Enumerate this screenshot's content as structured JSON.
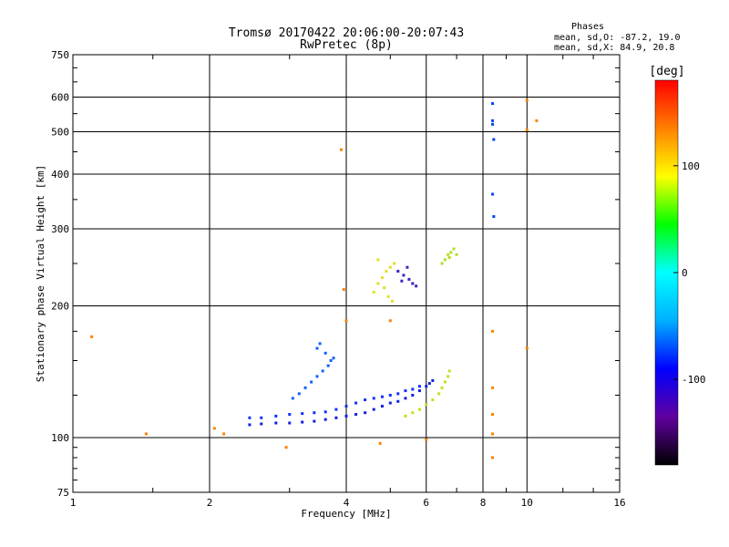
{
  "chart_data": {
    "type": "scatter",
    "title": "Tromsø 20170422 20:06:00-20:07:43",
    "subtitle": "RwPretec (8p)",
    "xlabel": "Frequency [MHz]",
    "ylabel": "Stationary phase Virtual Height [km]",
    "x_scale": "log",
    "y_scale": "log",
    "xlim": [
      1,
      16
    ],
    "ylim": [
      75,
      750
    ],
    "x_ticks": [
      "1",
      "2",
      "4",
      "6",
      "8",
      "10",
      "16"
    ],
    "y_ticks": [
      "75",
      "100",
      "200",
      "300",
      "400",
      "500",
      "600",
      "750"
    ],
    "grid": true,
    "phase_info": {
      "header": "Phases",
      "line_o": "mean, sd,O: -87.2, 19.0",
      "line_x": "mean, sd,X:  84.9, 20.8"
    },
    "colorbar": {
      "label": "[deg]",
      "ticks": [
        "100",
        "0",
        "-100"
      ],
      "range": [
        -180,
        180
      ],
      "colors": [
        "#000000",
        "#6000a0",
        "#0000ff",
        "#00b0ff",
        "#00ffff",
        "#00ff00",
        "#ffff00",
        "#ff8000",
        "#ff0000"
      ]
    },
    "series": [
      {
        "points": [
          [
            2.45,
            107
          ],
          [
            2.6,
            107.5
          ],
          [
            2.8,
            108
          ],
          [
            3.0,
            108
          ],
          [
            3.2,
            108.5
          ],
          [
            3.4,
            109
          ],
          [
            3.6,
            110
          ],
          [
            3.8,
            111
          ],
          [
            4.0,
            112
          ],
          [
            4.2,
            113
          ],
          [
            4.4,
            114
          ],
          [
            4.6,
            116
          ],
          [
            4.8,
            118
          ],
          [
            5.0,
            120
          ],
          [
            5.2,
            121
          ],
          [
            5.4,
            123
          ],
          [
            5.6,
            125
          ],
          [
            5.8,
            128
          ],
          [
            6.0,
            131
          ],
          [
            6.1,
            133
          ],
          [
            6.2,
            135
          ]
        ],
        "color": "#1020e0"
      },
      {
        "points": [
          [
            2.45,
            111
          ],
          [
            2.6,
            111
          ],
          [
            2.8,
            112
          ],
          [
            3.0,
            113
          ],
          [
            3.2,
            113.5
          ],
          [
            3.4,
            114
          ],
          [
            3.6,
            114.5
          ],
          [
            3.8,
            116
          ],
          [
            4.0,
            118
          ],
          [
            4.2,
            120
          ],
          [
            4.4,
            122
          ],
          [
            4.6,
            123
          ],
          [
            4.8,
            124
          ],
          [
            5.0,
            125
          ],
          [
            5.2,
            126
          ],
          [
            5.4,
            128
          ],
          [
            5.6,
            129
          ],
          [
            5.8,
            131
          ]
        ],
        "color": "#1030ff"
      },
      {
        "points": [
          [
            3.05,
            123
          ],
          [
            3.15,
            126
          ],
          [
            3.25,
            130
          ],
          [
            3.35,
            134
          ],
          [
            3.45,
            138
          ],
          [
            3.55,
            142
          ],
          [
            3.65,
            146
          ],
          [
            3.7,
            150
          ],
          [
            3.75,
            152
          ],
          [
            3.6,
            156
          ],
          [
            3.45,
            160
          ],
          [
            3.5,
            164
          ]
        ],
        "color": "#1060ff"
      },
      {
        "points": [
          [
            5.4,
            112
          ],
          [
            5.6,
            114
          ],
          [
            5.8,
            116
          ],
          [
            6.0,
            119
          ],
          [
            6.2,
            122
          ],
          [
            6.4,
            126
          ],
          [
            6.5,
            130
          ],
          [
            6.6,
            134
          ],
          [
            6.7,
            138
          ],
          [
            6.75,
            142
          ]
        ],
        "color": "#c0e020"
      },
      {
        "points": [
          [
            4.6,
            215
          ],
          [
            4.7,
            225
          ],
          [
            4.8,
            232
          ],
          [
            4.9,
            240
          ],
          [
            5.0,
            245
          ],
          [
            5.1,
            250
          ],
          [
            4.85,
            220
          ],
          [
            4.95,
            210
          ],
          [
            5.05,
            205
          ],
          [
            4.7,
            255
          ]
        ],
        "color": "#e0e020"
      },
      {
        "points": [
          [
            5.2,
            240
          ],
          [
            5.35,
            235
          ],
          [
            5.5,
            230
          ],
          [
            5.6,
            225
          ],
          [
            5.7,
            222
          ],
          [
            5.45,
            245
          ],
          [
            5.3,
            228
          ]
        ],
        "color": "#4020c0"
      },
      {
        "points": [
          [
            6.5,
            250
          ],
          [
            6.6,
            255
          ],
          [
            6.7,
            262
          ],
          [
            6.8,
            265
          ],
          [
            6.9,
            270
          ],
          [
            7.0,
            262
          ],
          [
            6.75,
            258
          ]
        ],
        "color": "#b0e020"
      },
      {
        "points": [
          [
            8.4,
            580
          ],
          [
            8.4,
            530
          ],
          [
            8.4,
            520
          ],
          [
            8.45,
            480
          ],
          [
            8.4,
            360
          ],
          [
            8.45,
            320
          ]
        ],
        "color": "#0040ff"
      },
      {
        "points": [
          [
            1.45,
            102
          ],
          [
            2.05,
            105
          ],
          [
            2.15,
            102
          ],
          [
            2.95,
            95
          ],
          [
            3.9,
            455
          ],
          [
            3.95,
            218
          ],
          [
            4.0,
            185
          ],
          [
            4.75,
            97
          ],
          [
            5.0,
            185
          ],
          [
            6.0,
            99
          ],
          [
            8.4,
            90
          ],
          [
            8.4,
            102
          ],
          [
            8.4,
            113
          ],
          [
            8.4,
            130
          ],
          [
            8.4,
            175
          ],
          [
            10.0,
            590
          ],
          [
            10.0,
            505
          ],
          [
            10.0,
            160
          ],
          [
            10.5,
            530
          ],
          [
            1.1,
            170
          ]
        ],
        "color": "#ff8000"
      }
    ]
  }
}
